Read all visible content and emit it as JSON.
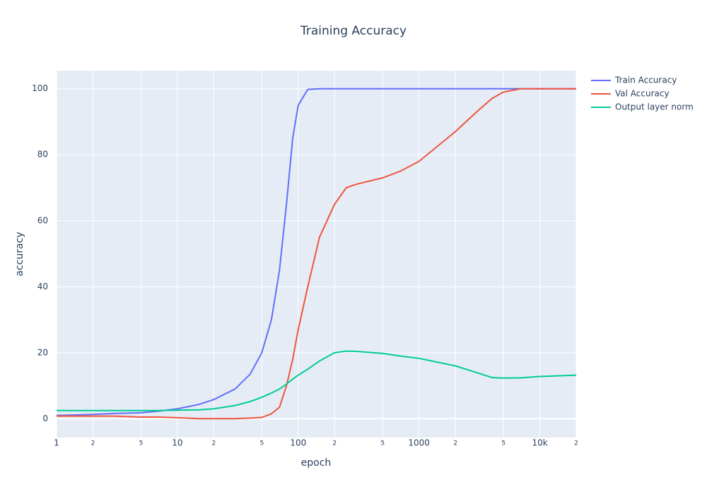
{
  "chart_data": {
    "type": "line",
    "title": "Training Accuracy",
    "x_label": "epoch",
    "y_label": "accuracy",
    "x": [
      1,
      2,
      3,
      5,
      7,
      10,
      15,
      20,
      30,
      40,
      50,
      60,
      70,
      80,
      90,
      100,
      120,
      150,
      200,
      250,
      300,
      500,
      700,
      1000,
      2000,
      3000,
      4000,
      5000,
      7000,
      10000,
      20000
    ],
    "series": [
      {
        "name": "Train Accuracy",
        "color": "#636efa",
        "values": [
          1,
          1.3,
          1.6,
          1.8,
          2.3,
          3,
          4.3,
          5.8,
          9,
          13.5,
          20,
          30,
          45,
          65,
          85,
          95,
          99.8,
          100,
          100,
          100,
          100,
          100,
          100,
          100,
          100,
          100,
          100,
          100,
          100,
          100,
          100
        ]
      },
      {
        "name": "Val Accuracy",
        "color": "#EF553B",
        "values": [
          0.8,
          0.8,
          0.8,
          0.5,
          0.5,
          0.3,
          0,
          0,
          0,
          0.2,
          0.4,
          1.5,
          3.5,
          10,
          18,
          27,
          40,
          55,
          65,
          70,
          71,
          73,
          75,
          78,
          87,
          93,
          97,
          99,
          100,
          100,
          100
        ]
      },
      {
        "name": "Output layer norm",
        "color": "#00cc96",
        "values": [
          2.5,
          2.5,
          2.5,
          2.5,
          2.5,
          2.6,
          2.7,
          3,
          4,
          5.2,
          6.5,
          7.8,
          9,
          10.5,
          12,
          13.2,
          15,
          17.5,
          20,
          20.5,
          20.4,
          19.8,
          19,
          18.3,
          16,
          14,
          12.5,
          12.3,
          12.4,
          12.8,
          13.2
        ]
      }
    ],
    "xlog": true,
    "xlim": [
      1,
      20000
    ],
    "xticks": [
      1,
      {
        "value": 2,
        "label": "2"
      },
      {
        "value": 5,
        "label": "5"
      },
      10,
      {
        "value": 20,
        "label": "2"
      },
      {
        "value": 50,
        "label": "5"
      },
      100,
      {
        "value": 200,
        "label": "2"
      },
      {
        "value": 500,
        "label": "5"
      },
      1000,
      {
        "value": 2000,
        "label": "2"
      },
      {
        "value": 5000,
        "label": "5"
      },
      {
        "value": 10000,
        "label": "10k"
      },
      {
        "value": 20000,
        "label": "2"
      }
    ],
    "ylim": [
      -5.7,
      105.5
    ],
    "yticks": [
      0,
      20,
      40,
      60,
      80,
      100
    ],
    "grid": true,
    "legend": "outside-right"
  }
}
